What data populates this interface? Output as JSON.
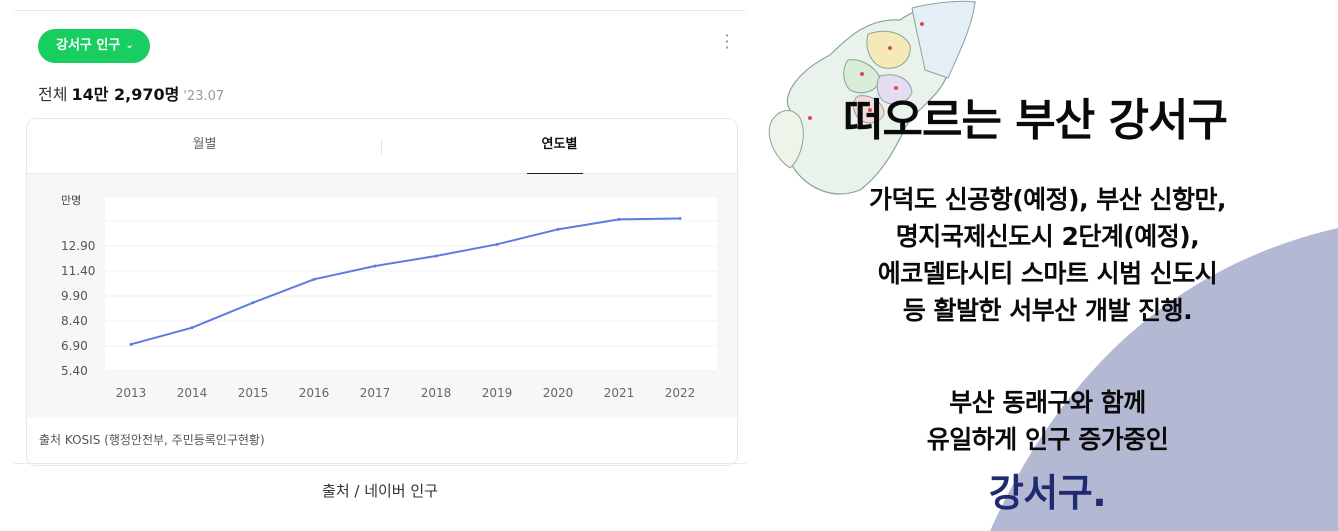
{
  "widget": {
    "region_button_label": "강서구 인구",
    "total_label": "전체",
    "total_value": "14만 2,970명",
    "total_date": "'23.07",
    "tabs": [
      {
        "label": "월별",
        "active": false
      },
      {
        "label": "연도별",
        "active": true
      }
    ],
    "source": "출처 KOSIS (행정안전부, 주민등록인구현황)",
    "accent_color": "#19ce60",
    "line_color": "#5b7de0"
  },
  "caption": "출처 / 네이버 인구",
  "headline": "떠오르는 부산 강서구",
  "description_lines": [
    "가덕도 신공항(예정), 부산 신항만,",
    "명지국제신도시 2단계(예정),",
    "에코델타시티 스마트 시범 신도시",
    "등 활발한 서부산 개발 진행."
  ],
  "growth_lines": [
    "부산 동래구와 함께",
    "유일하게 인구 증가중인"
  ],
  "highlight": "강서구.",
  "highlight_color": "#1f2a70",
  "chart_data": {
    "type": "line",
    "unit_label": "만명",
    "x": [
      "2013",
      "2014",
      "2015",
      "2016",
      "2017",
      "2018",
      "2019",
      "2020",
      "2021",
      "2022"
    ],
    "series": [
      {
        "values": [
          7.0,
          8.0,
          9.5,
          10.9,
          11.7,
          12.3,
          13.0,
          13.9,
          14.5,
          14.55
        ]
      }
    ],
    "y_ticks": [
      "12.90",
      "11.40",
      "9.90",
      "8.40",
      "6.90",
      "5.40"
    ],
    "y_tick_values": [
      12.9,
      11.4,
      9.9,
      8.4,
      6.9,
      5.4
    ],
    "ylim": [
      5.4,
      15.9
    ],
    "grid": true,
    "legend": "none"
  }
}
